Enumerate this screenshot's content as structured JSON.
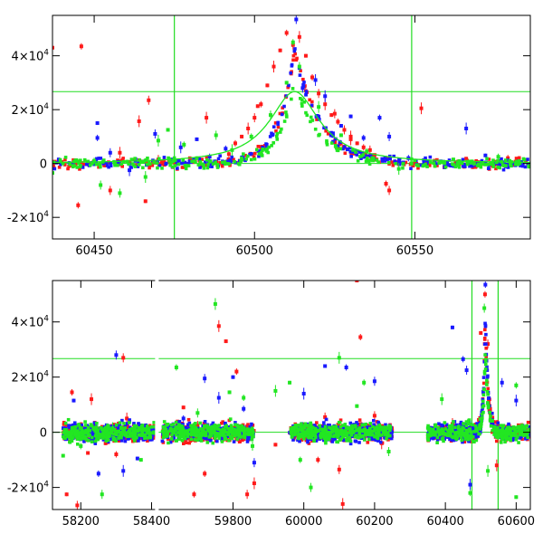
{
  "colors": {
    "series_red": "#ff1a1a",
    "series_blue": "#1a1aff",
    "series_green": "#22e622",
    "reference_lines": "#22dd22",
    "axis": "#000000"
  },
  "chart_data": [
    {
      "type": "scatter",
      "title": "",
      "xlabel": "",
      "ylabel": "",
      "xlim": [
        60437,
        60586
      ],
      "ylim": [
        -28000,
        55000
      ],
      "x_ticks": [
        {
          "value": 60450,
          "label": "60450"
        },
        {
          "value": 60500,
          "label": "60500"
        },
        {
          "value": 60550,
          "label": "60550"
        }
      ],
      "y_ticks": [
        {
          "value": -20000,
          "mant": "-2×10",
          "exp": "4"
        },
        {
          "value": 0,
          "mant": "0",
          "exp": ""
        },
        {
          "value": 20000,
          "mant": "2×10",
          "exp": "4"
        },
        {
          "value": 40000,
          "mant": "4×10",
          "exp": "4"
        }
      ],
      "reference_lines": {
        "vertical_x": [
          60475,
          60549
        ],
        "horizontal_y": [
          0,
          26700
        ]
      },
      "model_curve": {
        "peak_x": 60512.5,
        "peak_y": 26700,
        "width": 9.5
      },
      "series": [
        {
          "color": "red",
          "points": [
            [
              60437,
              43000
            ],
            [
              60446,
              43500
            ],
            [
              60467,
              23500
            ],
            [
              60464,
              15700
            ],
            [
              60466,
              -14000
            ],
            [
              60445,
              -15500
            ],
            [
              60455,
              -10000
            ],
            [
              60485,
              17000
            ],
            [
              60501,
              21300
            ],
            [
              60541,
              -7500
            ],
            [
              60542,
              -10000
            ],
            [
              60552,
              20500
            ],
            [
              60566,
              1800
            ],
            [
              60579,
              2000
            ],
            [
              60525,
              18500
            ],
            [
              60530,
              9000
            ],
            [
              60538,
              1500
            ],
            [
              60492,
              3500
            ],
            [
              60470,
              1500
            ],
            [
              60458,
              4000
            ],
            [
              60508,
              42000
            ],
            [
              60510,
              48500
            ],
            [
              60512,
              44000
            ],
            [
              60514,
              47000
            ],
            [
              60516,
              40000
            ],
            [
              60518,
              32000
            ],
            [
              60520,
              26000
            ],
            [
              60522,
              22000
            ],
            [
              60524,
              18000
            ],
            [
              60526,
              15500
            ],
            [
              60528,
              12500
            ],
            [
              60530,
              10000
            ],
            [
              60532,
              7500
            ],
            [
              60534,
              6000
            ],
            [
              60536,
              5000
            ],
            [
              60506,
              36000
            ],
            [
              60504,
              29000
            ],
            [
              60502,
              22000
            ],
            [
              60500,
              17000
            ],
            [
              60498,
              13000
            ],
            [
              60496,
              10000
            ],
            [
              60494,
              7500
            ]
          ]
        },
        {
          "color": "blue",
          "points": [
            [
              60451,
              15000
            ],
            [
              60451,
              9500
            ],
            [
              60469,
              11000
            ],
            [
              60477,
              6000
            ],
            [
              60482,
              9000
            ],
            [
              60486,
              2500
            ],
            [
              60513,
              53500
            ],
            [
              60519,
              31000
            ],
            [
              60527,
              14000
            ],
            [
              60539,
              17000
            ],
            [
              60542,
              10000
            ],
            [
              60566,
              13000
            ],
            [
              60572,
              3000
            ],
            [
              60548,
              2000
            ],
            [
              60455,
              4000
            ],
            [
              60461,
              -2500
            ],
            [
              60474,
              1500
            ],
            [
              60491,
              5500
            ],
            [
              60515,
              28000
            ],
            [
              60522,
              25000
            ],
            [
              60530,
              17500
            ],
            [
              60534,
              9500
            ]
          ]
        },
        {
          "color": "green",
          "points": [
            [
              60437,
              -3500
            ],
            [
              60450,
              1000
            ],
            [
              60452,
              -8000
            ],
            [
              60470,
              8500
            ],
            [
              60473,
              12500
            ],
            [
              60478,
              7000
            ],
            [
              60488,
              10500
            ],
            [
              60493,
              5000
            ],
            [
              60510,
              30000
            ],
            [
              60512,
              45000
            ],
            [
              60514,
              36000
            ],
            [
              60545,
              -2000
            ],
            [
              60562,
              1500
            ],
            [
              60576,
              2500
            ],
            [
              60458,
              -11000
            ],
            [
              60466,
              -5000
            ],
            [
              60482,
              2000
            ],
            [
              60499,
              10000
            ],
            [
              60505,
              18000
            ],
            [
              60520,
              21000
            ],
            [
              60527,
              10500
            ],
            [
              60535,
              4500
            ]
          ]
        }
      ]
    },
    {
      "type": "scatter",
      "title": "",
      "xlabel": "",
      "ylabel": "",
      "xlim": [
        58120,
        60640
      ],
      "ylim": [
        -28000,
        55000
      ],
      "x_ticks": [
        {
          "value": 58200,
          "label": "58200"
        },
        {
          "value": 58400,
          "label": "58400"
        },
        {
          "value": 59800,
          "label": "59800"
        },
        {
          "value": 60000,
          "label": "60000"
        },
        {
          "value": 60200,
          "label": "60200"
        },
        {
          "value": 60400,
          "label": "60400"
        },
        {
          "value": 60600,
          "label": "60600"
        }
      ],
      "y_ticks": [
        {
          "value": -20000,
          "mant": "-2×10",
          "exp": "4"
        },
        {
          "value": 0,
          "mant": "0",
          "exp": ""
        },
        {
          "value": 20000,
          "mant": "2×10",
          "exp": "4"
        },
        {
          "value": 40000,
          "mant": "4×10",
          "exp": "4"
        }
      ],
      "reference_lines": {
        "vertical_x": [
          60475,
          60549
        ],
        "horizontal_y": [
          0,
          26700
        ]
      },
      "gaps": [
        [
          58415,
          59585
        ]
      ],
      "seasons": [
        [
          58150,
          58410
        ],
        [
          59600,
          59860
        ],
        [
          59960,
          60250
        ],
        [
          60350,
          60640
        ]
      ],
      "series": [
        {
          "color": "red",
          "points": [
            [
              58160,
              -22500
            ],
            [
              58175,
              14500
            ],
            [
              58190,
              -26500
            ],
            [
              58230,
              12000
            ],
            [
              58270,
              -4000
            ],
            [
              58300,
              -8000
            ],
            [
              58320,
              27000
            ],
            [
              58330,
              5000
            ],
            [
              59660,
              9000
            ],
            [
              59690,
              -22500
            ],
            [
              59700,
              2500
            ],
            [
              59760,
              38500
            ],
            [
              59780,
              33000
            ],
            [
              59810,
              22000
            ],
            [
              59840,
              -22500
            ],
            [
              59860,
              -18500
            ],
            [
              59920,
              -4500
            ],
            [
              60040,
              -10000
            ],
            [
              60100,
              -13500
            ],
            [
              60110,
              -26000
            ],
            [
              60150,
              55000
            ],
            [
              60160,
              34500
            ],
            [
              60200,
              6000
            ],
            [
              60420,
              3000
            ],
            [
              60500,
              36000
            ],
            [
              60512,
              50000
            ],
            [
              60520,
              32000
            ],
            [
              60545,
              -12000
            ],
            [
              58220,
              -7500
            ],
            [
              59720,
              -15000
            ],
            [
              60060,
              5500
            ],
            [
              60220,
              -4000
            ]
          ]
        },
        {
          "color": "blue",
          "points": [
            [
              58180,
              11500
            ],
            [
              58250,
              -15000
            ],
            [
              58300,
              28000
            ],
            [
              58320,
              -14000
            ],
            [
              58360,
              -9500
            ],
            [
              59660,
              5000
            ],
            [
              59720,
              19500
            ],
            [
              59760,
              12500
            ],
            [
              59800,
              20000
            ],
            [
              59830,
              8500
            ],
            [
              59860,
              -11000
            ],
            [
              60000,
              14000
            ],
            [
              60060,
              24000
            ],
            [
              60120,
              23500
            ],
            [
              60200,
              18500
            ],
            [
              60215,
              -2000
            ],
            [
              60420,
              38000
            ],
            [
              60450,
              26500
            ],
            [
              60460,
              22500
            ],
            [
              60470,
              -19000
            ],
            [
              60500,
              4000
            ],
            [
              60513,
              53500
            ],
            [
              60560,
              18000
            ],
            [
              60600,
              11500
            ]
          ]
        },
        {
          "color": "green",
          "points": [
            [
              58150,
              -8500
            ],
            [
              58200,
              -5000
            ],
            [
              58260,
              -22500
            ],
            [
              58290,
              1500
            ],
            [
              58370,
              -10000
            ],
            [
              59640,
              23500
            ],
            [
              59700,
              7000
            ],
            [
              59750,
              46500
            ],
            [
              59790,
              14500
            ],
            [
              59830,
              12500
            ],
            [
              59855,
              -5000
            ],
            [
              59920,
              15000
            ],
            [
              59960,
              18000
            ],
            [
              59990,
              -10000
            ],
            [
              60020,
              -20000
            ],
            [
              60100,
              27000
            ],
            [
              60150,
              9500
            ],
            [
              60170,
              18000
            ],
            [
              60240,
              -7000
            ],
            [
              60390,
              12000
            ],
            [
              60430,
              -2000
            ],
            [
              60470,
              -22000
            ],
            [
              60510,
              45000
            ],
            [
              60520,
              -14000
            ],
            [
              60600,
              -23500
            ],
            [
              60600,
              17000
            ]
          ]
        }
      ]
    }
  ]
}
